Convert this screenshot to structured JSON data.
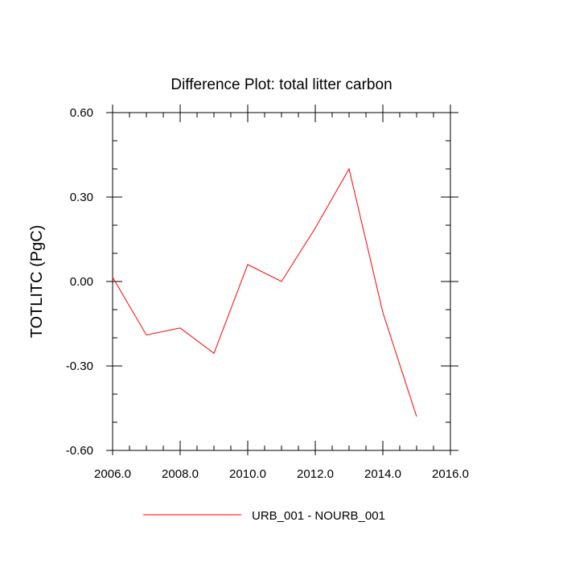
{
  "chart_data": {
    "type": "line",
    "title": "Difference Plot: total litter carbon",
    "xlabel": "",
    "ylabel": "TOTLITC  (PgC)",
    "xlim": [
      2006,
      2016
    ],
    "ylim": [
      -0.6,
      0.6
    ],
    "x_ticks": [
      2006,
      2008,
      2010,
      2012,
      2014,
      2016
    ],
    "x_tick_labels": [
      "2006.0",
      "2008.0",
      "2010.0",
      "2012.0",
      "2014.0",
      "2016.0"
    ],
    "y_ticks": [
      -0.6,
      -0.3,
      0.0,
      0.3,
      0.6
    ],
    "y_tick_labels": [
      "-0.60",
      "-0.30",
      "0.00",
      "0.30",
      "0.60"
    ],
    "x_minor_step": 0.5,
    "y_minor_step": 0.1,
    "grid": false,
    "legend_position": "bottom",
    "series": [
      {
        "name": "URB_001 - NOURB_001",
        "color": "#ff0000",
        "x": [
          2006,
          2007,
          2008,
          2009,
          2010,
          2011,
          2012,
          2013,
          2014,
          2015
        ],
        "y": [
          0.015,
          -0.19,
          -0.165,
          -0.255,
          0.06,
          0.0,
          0.19,
          0.4,
          -0.11,
          -0.48
        ]
      }
    ]
  }
}
